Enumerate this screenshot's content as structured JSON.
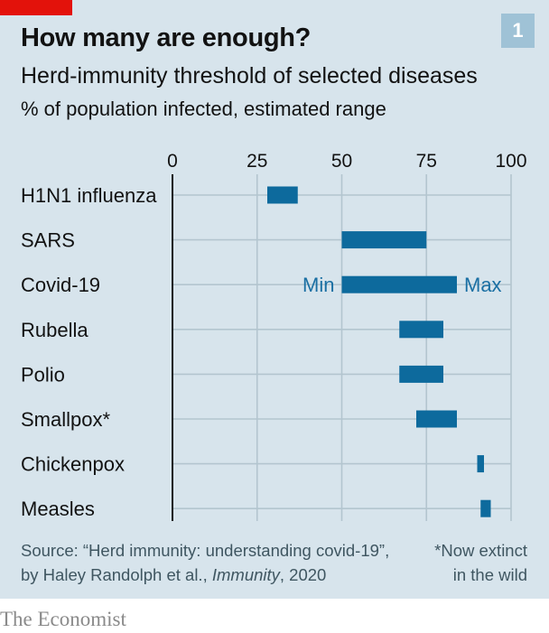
{
  "header": {
    "title": "How many are enough?",
    "subtitle": "Herd-immunity threshold of selected diseases",
    "unit": "% of population infected, estimated range",
    "badge": "1"
  },
  "colors": {
    "bar": "#0d6a9d",
    "label_accent": "#1a6fa3",
    "brand_red": "#e3120b",
    "background": "#d7e4ec"
  },
  "chart_data": {
    "type": "bar",
    "orientation": "horizontal-range",
    "title": "How many are enough?",
    "subtitle": "Herd-immunity threshold of selected diseases",
    "xlabel": "% of population infected, estimated range",
    "xlim": [
      0,
      100
    ],
    "xticks": [
      0,
      25,
      50,
      75,
      100
    ],
    "grid": true,
    "categories": [
      "H1N1 influenza",
      "SARS",
      "Covid-19",
      "Rubella",
      "Polio",
      "Smallpox*",
      "Chickenpox",
      "Measles"
    ],
    "ranges": [
      [
        28,
        37
      ],
      [
        50,
        75
      ],
      [
        50,
        84
      ],
      [
        67,
        80
      ],
      [
        67,
        80
      ],
      [
        72,
        84
      ],
      [
        90,
        92
      ],
      [
        91,
        94
      ]
    ],
    "annotations": {
      "min_label": "Min",
      "max_label": "Max",
      "category": "Covid-19"
    }
  },
  "footer": {
    "source_line1": "Source: “Herd immunity: understanding covid-19”,",
    "source_line2_prefix": "by Haley Randolph et al., ",
    "source_line2_journal": "Immunity",
    "source_line2_suffix": ", 2020",
    "footnote_line1": "*Now extinct",
    "footnote_line2": "in the wild",
    "brand": "The Economist"
  }
}
